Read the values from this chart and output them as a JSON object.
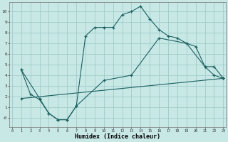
{
  "xlabel": "Humidex (Indice chaleur)",
  "xlim": [
    -0.3,
    23.3
  ],
  "ylim": [
    -0.9,
    10.9
  ],
  "yticks": [
    0,
    1,
    2,
    3,
    4,
    5,
    6,
    7,
    8,
    9,
    10
  ],
  "ytick_labels": [
    "-0",
    "1",
    "2",
    "3",
    "4",
    "5",
    "6",
    "7",
    "8",
    "9",
    "10"
  ],
  "xticks": [
    0,
    1,
    2,
    3,
    4,
    5,
    6,
    7,
    8,
    9,
    10,
    11,
    12,
    13,
    14,
    15,
    16,
    17,
    18,
    19,
    20,
    21,
    22,
    23
  ],
  "xtick_labels": [
    "0",
    "1",
    "2",
    "3",
    "4",
    "5",
    "6",
    "7",
    "8",
    "9",
    "10",
    "11",
    "12",
    "13",
    "14",
    "15",
    "16",
    "17",
    "18",
    "19",
    "20",
    "21",
    "22",
    "23"
  ],
  "bg_color": "#c8e8e6",
  "grid_color": "#a0ccca",
  "line_color": "#1a6060",
  "line1_x": [
    1,
    2,
    3,
    4,
    5,
    6,
    7,
    8,
    9,
    10,
    11,
    12,
    13,
    14,
    15,
    16,
    17,
    18,
    19,
    20,
    21,
    22,
    23
  ],
  "line1_y": [
    4.5,
    2.2,
    1.7,
    0.4,
    -0.2,
    -0.2,
    1.1,
    7.7,
    8.5,
    8.5,
    8.5,
    9.7,
    10.0,
    10.5,
    9.3,
    8.3,
    7.7,
    7.5,
    7.0,
    6.7,
    4.8,
    4.0,
    3.7
  ],
  "line2_x": [
    1,
    3,
    4,
    5,
    6,
    7,
    10,
    13,
    16,
    19,
    21,
    22,
    23
  ],
  "line2_y": [
    4.5,
    1.8,
    0.4,
    -0.2,
    -0.2,
    1.1,
    3.5,
    4.0,
    7.5,
    7.0,
    4.8,
    4.8,
    3.7
  ],
  "line3_x": [
    1,
    23
  ],
  "line3_y": [
    1.8,
    3.7
  ]
}
